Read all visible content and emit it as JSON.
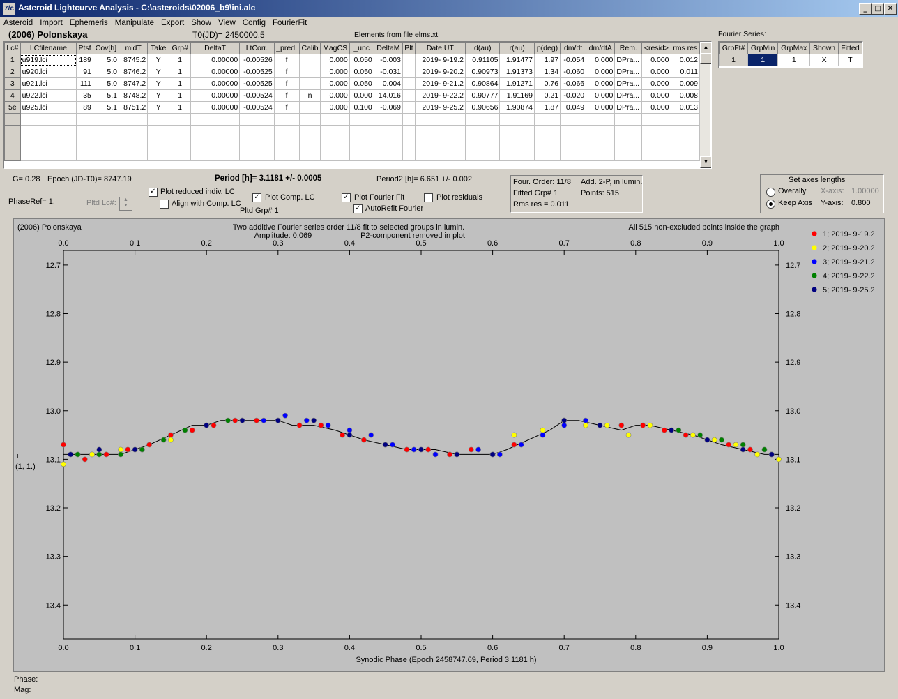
{
  "window": {
    "title": "Asteroid Lightcurve Analysis - C:\\asteroids\\02006_b9\\ini.alc",
    "icon_text": "7/c",
    "minimize": "_",
    "maximize": "□",
    "close": "✕"
  },
  "menu": [
    "Asteroid",
    "Import",
    "Ephemeris",
    "Manipulate",
    "Export",
    "Show",
    "View",
    "Config",
    "FourierFit"
  ],
  "header": {
    "asteroid": "(2006) Polonskaya",
    "t0": "T0(JD)= 2450000.5",
    "elements": "Elements from file elms.xt"
  },
  "lc_table": {
    "columns": [
      "Lc#",
      "LCfilename",
      "Ptsf",
      "Cov[h]",
      "midT",
      "Take",
      "Grp#",
      "DeltaT",
      "LtCorr.",
      "_pred.",
      "Calib",
      "MagCS",
      "_unc",
      "DeltaM",
      "Plt",
      "Date UT",
      "d(au)",
      "r(au)",
      "p(deg)",
      "dm/dt",
      "dm/dtA",
      "Rem.",
      "<resid>",
      "rms res"
    ],
    "rows": [
      [
        "1",
        "u919.lci",
        "189",
        "5.0",
        "8745.2",
        "Y",
        "1",
        "0.00000",
        "-0.00526",
        "f",
        "i",
        "0.000",
        "0.050",
        "-0.003",
        "",
        "2019- 9-19.2",
        "0.91105",
        "1.91477",
        "1.97",
        "-0.054",
        "0.000",
        "DPra...",
        "0.000",
        "0.012"
      ],
      [
        "2",
        "u920.lci",
        "91",
        "5.0",
        "8746.2",
        "Y",
        "1",
        "0.00000",
        "-0.00525",
        "f",
        "i",
        "0.000",
        "0.050",
        "-0.031",
        "",
        "2019- 9-20.2",
        "0.90973",
        "1.91373",
        "1.34",
        "-0.060",
        "0.000",
        "DPra...",
        "0.000",
        "0.011"
      ],
      [
        "3",
        "u921.lci",
        "111",
        "5.0",
        "8747.2",
        "Y",
        "1",
        "0.00000",
        "-0.00525",
        "f",
        "i",
        "0.000",
        "0.050",
        "0.004",
        "",
        "2019- 9-21.2",
        "0.90864",
        "1.91271",
        "0.76",
        "-0.066",
        "0.000",
        "DPra...",
        "0.000",
        "0.009"
      ],
      [
        "4",
        "u922.lci",
        "35",
        "5.1",
        "8748.2",
        "Y",
        "1",
        "0.00000",
        "-0.00524",
        "f",
        "n",
        "0.000",
        "0.000",
        "14.016",
        "",
        "2019- 9-22.2",
        "0.90777",
        "1.91169",
        "0.21",
        "-0.020",
        "0.000",
        "DPra...",
        "0.000",
        "0.008"
      ],
      [
        "5e",
        "u925.lci",
        "89",
        "5.1",
        "8751.2",
        "Y",
        "1",
        "0.00000",
        "-0.00524",
        "f",
        "i",
        "0.000",
        "0.100",
        "-0.069",
        "",
        "2019- 9-25.2",
        "0.90656",
        "1.90874",
        "1.87",
        "0.049",
        "0.000",
        "DPra...",
        "0.000",
        "0.013"
      ]
    ]
  },
  "fourier_table": {
    "label": "Fourier Series:",
    "columns": [
      "GrpFt#",
      "GrpMin",
      "GrpMax",
      "Shown",
      "Fitted"
    ],
    "row": [
      "1",
      "1",
      "1",
      "X",
      "T"
    ]
  },
  "info": {
    "g": "G= 0.28",
    "epoch": "Epoch (JD-T0)= 8747.19",
    "period": "Period [h]= 3.1181 +/- 0.0005",
    "period2": "Period2 [h]= 6.651 +/- 0.002",
    "phase_ref": "PhaseRef= 1.",
    "pltd_lc": "Pltd Lc#:",
    "pltd_grp": "Pltd Grp#  1",
    "four_order": "Four. Order: 11/8",
    "add2p": "Add. 2-P, in lumin.",
    "fitted_grp": "Fitted Grp# 1",
    "points": "Points: 515",
    "rms": "Rms res     = 0.011"
  },
  "options": {
    "plot_reduced": "Plot reduced indiv. LC",
    "align_comp": "Align with Comp. LC",
    "plot_comp": "Plot Comp. LC",
    "plot_fourier": "Plot Fourier Fit",
    "autorefit": "AutoRefit Fourier",
    "plot_residuals": "Plot residuals",
    "checked": {
      "plot_reduced": true,
      "align_comp": false,
      "plot_comp": true,
      "plot_fourier": true,
      "autorefit": true,
      "plot_residuals": false
    }
  },
  "axes_box": {
    "title": "Set axes lengths",
    "overally": "Overally",
    "keep_axis": "Keep Axis",
    "x_label": "X-axis:",
    "x_value": "1.00000",
    "y_label": "Y-axis:",
    "y_value": "0.800",
    "selected": "keep_axis"
  },
  "plot": {
    "name": "(2006) Polonskaya",
    "subtitle1": "Two additive Fourier series order 11/8 fit to selected groups in lumin.",
    "amplitude": "Amplitude: 0.069",
    "subtitle2": "P2-component removed in plot",
    "points_note": "All 515 non-excluded points inside the graph",
    "ylabel1": "i",
    "ylabel2": "(1, 1.)",
    "xlabel": "Synodic Phase (Epoch 2458747.69, Period 3.1181 h)",
    "bg": "#c0c0c0"
  },
  "chart_data": {
    "type": "scatter",
    "xlim": [
      0,
      1
    ],
    "ylim": [
      12.67,
      13.47
    ],
    "y_inverted": true,
    "x_ticks": [
      "0.0",
      "0.1",
      "0.2",
      "0.3",
      "0.4",
      "0.5",
      "0.6",
      "0.7",
      "0.8",
      "0.9",
      "1.0"
    ],
    "y_ticks": [
      "12.7",
      "12.8",
      "12.9",
      "13.0",
      "13.1",
      "13.2",
      "13.3",
      "13.4"
    ],
    "fit_curve": {
      "x": [
        0.0,
        0.02,
        0.05,
        0.08,
        0.1,
        0.12,
        0.15,
        0.18,
        0.2,
        0.22,
        0.25,
        0.28,
        0.3,
        0.32,
        0.35,
        0.38,
        0.4,
        0.42,
        0.45,
        0.48,
        0.5,
        0.52,
        0.55,
        0.58,
        0.6,
        0.62,
        0.65,
        0.68,
        0.7,
        0.72,
        0.75,
        0.78,
        0.8,
        0.82,
        0.85,
        0.88,
        0.9,
        0.92,
        0.95,
        0.98,
        1.0
      ],
      "y": [
        13.09,
        13.09,
        13.09,
        13.09,
        13.08,
        13.07,
        13.05,
        13.03,
        13.03,
        13.02,
        13.02,
        13.02,
        13.02,
        13.03,
        13.03,
        13.04,
        13.05,
        13.06,
        13.07,
        13.08,
        13.08,
        13.08,
        13.09,
        13.09,
        13.09,
        13.08,
        13.06,
        13.04,
        13.02,
        13.02,
        13.03,
        13.04,
        13.03,
        13.03,
        13.04,
        13.05,
        13.06,
        13.07,
        13.08,
        13.09,
        13.09
      ]
    },
    "series": [
      {
        "name": "1; 2019- 9-19.2",
        "color": "#ff0000",
        "x": [
          0.0,
          0.03,
          0.06,
          0.09,
          0.12,
          0.15,
          0.18,
          0.21,
          0.24,
          0.27,
          0.3,
          0.33,
          0.36,
          0.39,
          0.42,
          0.45,
          0.48,
          0.51,
          0.54,
          0.57,
          0.6,
          0.63,
          0.78,
          0.81,
          0.84,
          0.87,
          0.9,
          0.93,
          0.96,
          0.99
        ],
        "y": [
          13.07,
          13.1,
          13.09,
          13.08,
          13.07,
          13.05,
          13.04,
          13.03,
          13.02,
          13.02,
          13.02,
          13.03,
          13.03,
          13.05,
          13.06,
          13.07,
          13.08,
          13.08,
          13.09,
          13.08,
          13.09,
          13.07,
          13.03,
          13.03,
          13.04,
          13.05,
          13.06,
          13.07,
          13.08,
          13.09
        ]
      },
      {
        "name": "2; 2019- 9-20.2",
        "color": "#ffff00",
        "x": [
          0.0,
          0.04,
          0.08,
          0.11,
          0.15,
          0.63,
          0.67,
          0.7,
          0.73,
          0.76,
          0.79,
          0.82,
          0.85,
          0.88,
          0.91,
          0.94,
          0.97,
          1.0
        ],
        "y": [
          13.11,
          13.09,
          13.08,
          13.08,
          13.06,
          13.05,
          13.04,
          13.02,
          13.03,
          13.03,
          13.05,
          13.03,
          13.04,
          13.05,
          13.06,
          13.07,
          13.09,
          13.1
        ]
      },
      {
        "name": "3; 2019- 9-21.2",
        "color": "#0000ff",
        "x": [
          0.25,
          0.28,
          0.31,
          0.34,
          0.37,
          0.4,
          0.43,
          0.46,
          0.49,
          0.52,
          0.55,
          0.58,
          0.61,
          0.64,
          0.67,
          0.7,
          0.73
        ],
        "y": [
          13.02,
          13.02,
          13.01,
          13.02,
          13.03,
          13.04,
          13.05,
          13.07,
          13.08,
          13.09,
          13.09,
          13.08,
          13.09,
          13.07,
          13.05,
          13.03,
          13.02
        ]
      },
      {
        "name": "4; 2019- 9-22.2",
        "color": "#008000",
        "x": [
          0.02,
          0.05,
          0.08,
          0.11,
          0.14,
          0.17,
          0.2,
          0.23,
          0.86,
          0.89,
          0.92,
          0.95,
          0.98
        ],
        "y": [
          13.09,
          13.09,
          13.09,
          13.08,
          13.06,
          13.04,
          13.03,
          13.02,
          13.04,
          13.05,
          13.06,
          13.07,
          13.08
        ]
      },
      {
        "name": "5; 2019- 9-25.2",
        "color": "#000080",
        "x": [
          0.01,
          0.05,
          0.1,
          0.2,
          0.25,
          0.3,
          0.35,
          0.4,
          0.45,
          0.5,
          0.55,
          0.6,
          0.7,
          0.75,
          0.85,
          0.9,
          0.95,
          0.99
        ],
        "y": [
          13.09,
          13.08,
          13.08,
          13.03,
          13.02,
          13.02,
          13.02,
          13.05,
          13.07,
          13.08,
          13.09,
          13.09,
          13.02,
          13.03,
          13.04,
          13.06,
          13.08,
          13.09
        ]
      }
    ]
  }
}
